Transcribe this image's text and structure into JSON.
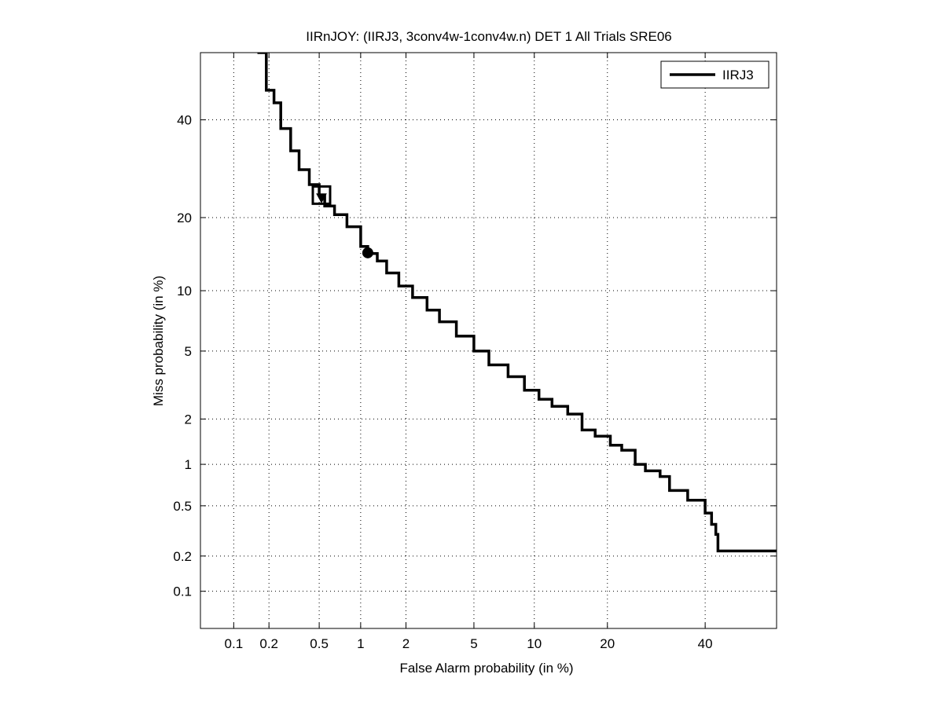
{
  "chart_data": {
    "type": "line",
    "title": "IIRnJOY: (IIRJ3, 3conv4w-1conv4w.n) DET 1 All Trials SRE06",
    "xlabel": "False Alarm probability (in %)",
    "ylabel": "Miss probability (in %)",
    "x_scale": "normal-deviate",
    "y_scale": "normal-deviate",
    "xlim": [
      0.05,
      57
    ],
    "ylim": [
      0.046,
      56
    ],
    "grid": true,
    "x_ticks": [
      {
        "value": 0.1,
        "label": "0.1"
      },
      {
        "value": 0.2,
        "label": "0.2"
      },
      {
        "value": 0.5,
        "label": "0.5"
      },
      {
        "value": 1,
        "label": "1"
      },
      {
        "value": 2,
        "label": "2"
      },
      {
        "value": 5,
        "label": "5"
      },
      {
        "value": 10,
        "label": "10"
      },
      {
        "value": 20,
        "label": "20"
      },
      {
        "value": 40,
        "label": "40"
      }
    ],
    "y_ticks": [
      {
        "value": 0.1,
        "label": "0.1"
      },
      {
        "value": 0.2,
        "label": "0.2"
      },
      {
        "value": 0.5,
        "label": "0.5"
      },
      {
        "value": 1,
        "label": "1"
      },
      {
        "value": 2,
        "label": "2"
      },
      {
        "value": 5,
        "label": "5"
      },
      {
        "value": 10,
        "label": "10"
      },
      {
        "value": 20,
        "label": "20"
      },
      {
        "value": 40,
        "label": "40"
      }
    ],
    "legend": {
      "position": "top-right"
    },
    "series": [
      {
        "name": "IIRJ3",
        "color": "#000000",
        "points": [
          [
            0.16,
            56
          ],
          [
            0.19,
            47
          ],
          [
            0.22,
            44
          ],
          [
            0.25,
            38
          ],
          [
            0.3,
            33
          ],
          [
            0.35,
            29
          ],
          [
            0.42,
            26
          ],
          [
            0.5,
            24
          ],
          [
            0.55,
            22
          ],
          [
            0.65,
            20.5
          ],
          [
            0.8,
            18.5
          ],
          [
            1.0,
            15.5
          ],
          [
            1.12,
            14.5
          ],
          [
            1.3,
            13.5
          ],
          [
            1.5,
            12
          ],
          [
            1.8,
            10.5
          ],
          [
            2.2,
            9.3
          ],
          [
            2.7,
            8.1
          ],
          [
            3.2,
            7.1
          ],
          [
            4.0,
            6.0
          ],
          [
            5.0,
            5.0
          ],
          [
            6.0,
            4.2
          ],
          [
            7.5,
            3.6
          ],
          [
            9.0,
            3.0
          ],
          [
            10.5,
            2.65
          ],
          [
            12,
            2.4
          ],
          [
            14,
            2.15
          ],
          [
            16,
            1.7
          ],
          [
            18,
            1.55
          ],
          [
            20.5,
            1.35
          ],
          [
            22.5,
            1.25
          ],
          [
            25,
            1.0
          ],
          [
            27,
            0.9
          ],
          [
            30,
            0.82
          ],
          [
            32,
            0.65
          ],
          [
            36,
            0.55
          ],
          [
            40,
            0.44
          ],
          [
            41.5,
            0.36
          ],
          [
            42.5,
            0.3
          ],
          [
            43,
            0.22
          ],
          [
            57,
            0.22
          ]
        ]
      }
    ],
    "markers": [
      {
        "shape": "square",
        "x": 0.52,
        "y": 24
      },
      {
        "shape": "triangle-down",
        "x": 0.52,
        "y": 23.5
      },
      {
        "shape": "circle",
        "x": 1.12,
        "y": 14.6
      }
    ]
  }
}
